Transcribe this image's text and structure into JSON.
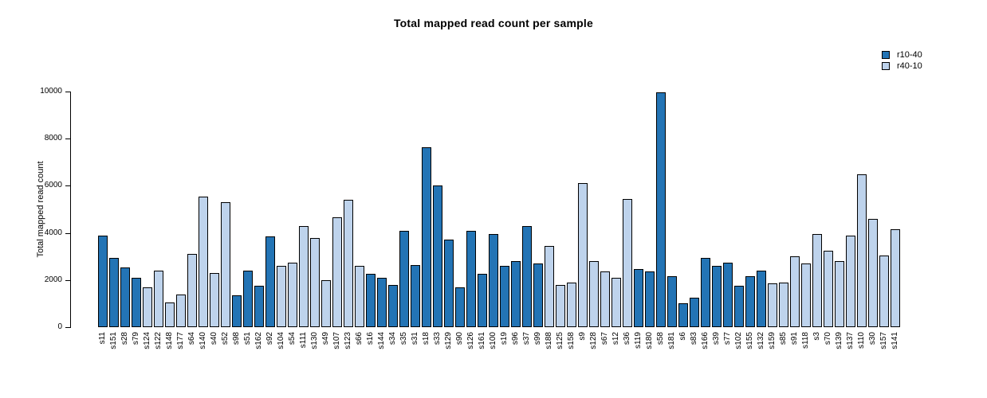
{
  "figure": {
    "title": "Total mapped read count per sample"
  },
  "chart_data": {
    "type": "bar",
    "title": "Total mapped read count per sample",
    "xlabel": "",
    "ylabel": "Total mapped read count",
    "ylim": [
      0,
      10000
    ],
    "yticks": [
      0,
      2000,
      4000,
      6000,
      8000,
      10000
    ],
    "grid": false,
    "legend_position": "top-right",
    "bar_border_color": "#000000",
    "series": [
      {
        "name": "r10-40",
        "color": "#2374b5"
      },
      {
        "name": "r40-10",
        "color": "#bed3ec"
      }
    ],
    "categories": [
      "s11",
      "s151",
      "s28",
      "s79",
      "s124",
      "s122",
      "s148",
      "s177",
      "s64",
      "s140",
      "s40",
      "s52",
      "s98",
      "s51",
      "s162",
      "s92",
      "s104",
      "s54",
      "s111",
      "s130",
      "s49",
      "s107",
      "s123",
      "s66",
      "s16",
      "s144",
      "s34",
      "s35",
      "s31",
      "s18",
      "s33",
      "s129",
      "s90",
      "s126",
      "s161",
      "s100",
      "s19",
      "s96",
      "s37",
      "s99",
      "s188",
      "s125",
      "s158",
      "s9",
      "s128",
      "s67",
      "s12",
      "s36",
      "s119",
      "s180",
      "s58",
      "s181",
      "s6",
      "s83",
      "s166",
      "s39",
      "s77",
      "s102",
      "s155",
      "s132",
      "s159",
      "s85",
      "s91",
      "s118",
      "s3",
      "s70",
      "s139",
      "s137",
      "s110",
      "s30",
      "s157",
      "s141"
    ],
    "values": [
      3900,
      2950,
      2550,
      2100,
      1700,
      2400,
      1050,
      1400,
      3100,
      5550,
      2300,
      5300,
      1350,
      2400,
      1750,
      3850,
      2600,
      2750,
      4300,
      3800,
      2000,
      4650,
      5400,
      2600,
      2250,
      2100,
      1800,
      4100,
      2650,
      7650,
      6000,
      3700,
      1700,
      4100,
      2250,
      3950,
      2600,
      2800,
      4300,
      2700,
      3450,
      1800,
      1900,
      6100,
      2800,
      2350,
      2100,
      5450,
      2450,
      2350,
      9950,
      2150,
      1000,
      1250,
      2950,
      2600,
      2750,
      1750,
      2150,
      2400,
      1850,
      1900,
      3000,
      2700,
      3950,
      3250,
      2800,
      3900,
      6500,
      4600,
      3050,
      4150
    ],
    "groups": [
      "r10-40",
      "r10-40",
      "r10-40",
      "r10-40",
      "r40-10",
      "r40-10",
      "r40-10",
      "r40-10",
      "r40-10",
      "r40-10",
      "r40-10",
      "r40-10",
      "r10-40",
      "r10-40",
      "r10-40",
      "r10-40",
      "r40-10",
      "r40-10",
      "r40-10",
      "r40-10",
      "r40-10",
      "r40-10",
      "r40-10",
      "r40-10",
      "r10-40",
      "r10-40",
      "r10-40",
      "r10-40",
      "r10-40",
      "r10-40",
      "r10-40",
      "r10-40",
      "r10-40",
      "r10-40",
      "r10-40",
      "r10-40",
      "r10-40",
      "r10-40",
      "r10-40",
      "r10-40",
      "r40-10",
      "r40-10",
      "r40-10",
      "r40-10",
      "r40-10",
      "r40-10",
      "r40-10",
      "r40-10",
      "r10-40",
      "r10-40",
      "r10-40",
      "r10-40",
      "r10-40",
      "r10-40",
      "r10-40",
      "r10-40",
      "r10-40",
      "r10-40",
      "r10-40",
      "r10-40",
      "r40-10",
      "r40-10",
      "r40-10",
      "r40-10",
      "r40-10",
      "r40-10",
      "r40-10",
      "r40-10",
      "r40-10",
      "r40-10",
      "r40-10",
      "r40-10"
    ]
  }
}
